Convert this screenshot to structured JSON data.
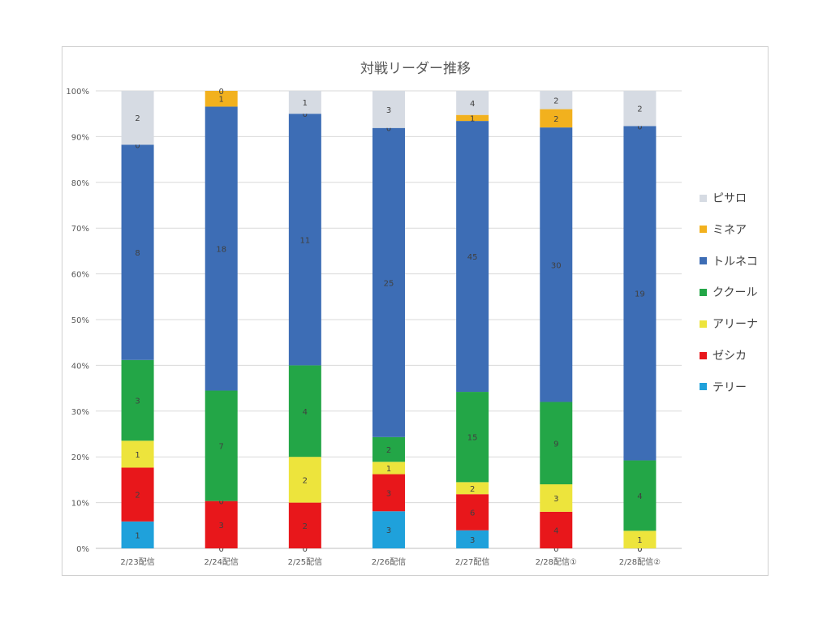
{
  "chart_data": {
    "type": "bar",
    "stacked": "percent",
    "title": "対戦リーダー推移",
    "xlabel": "",
    "ylabel": "",
    "ylim": [
      0,
      100
    ],
    "yticks": [
      "0%",
      "10%",
      "20%",
      "30%",
      "40%",
      "50%",
      "60%",
      "70%",
      "80%",
      "90%",
      "100%"
    ],
    "grid": true,
    "legend_position": "right",
    "categories": [
      "2/23配信",
      "2/24配信",
      "2/25配信",
      "2/26配信",
      "2/27配信",
      "2/28配信①",
      "2/28配信②"
    ],
    "series": [
      {
        "name": "テリー",
        "color": "#1FA1DB",
        "values": [
          1,
          0,
          0,
          3,
          3,
          0,
          0
        ]
      },
      {
        "name": "ゼシカ",
        "color": "#E8171B",
        "values": [
          2,
          3,
          2,
          3,
          6,
          4,
          0
        ]
      },
      {
        "name": "アリーナ",
        "color": "#EDE43C",
        "values": [
          1,
          0,
          2,
          1,
          2,
          3,
          1
        ]
      },
      {
        "name": "ククール",
        "color": "#23A647",
        "values": [
          3,
          7,
          4,
          2,
          15,
          9,
          4
        ]
      },
      {
        "name": "トルネコ",
        "color": "#3D6DB5",
        "values": [
          8,
          18,
          11,
          25,
          45,
          30,
          19
        ]
      },
      {
        "name": "ミネア",
        "color": "#F2B11E",
        "values": [
          0,
          1,
          0,
          0,
          1,
          2,
          0
        ]
      },
      {
        "name": "ピサロ",
        "color": "#D6DBE3",
        "values": [
          2,
          0,
          1,
          3,
          4,
          2,
          2
        ]
      }
    ]
  }
}
